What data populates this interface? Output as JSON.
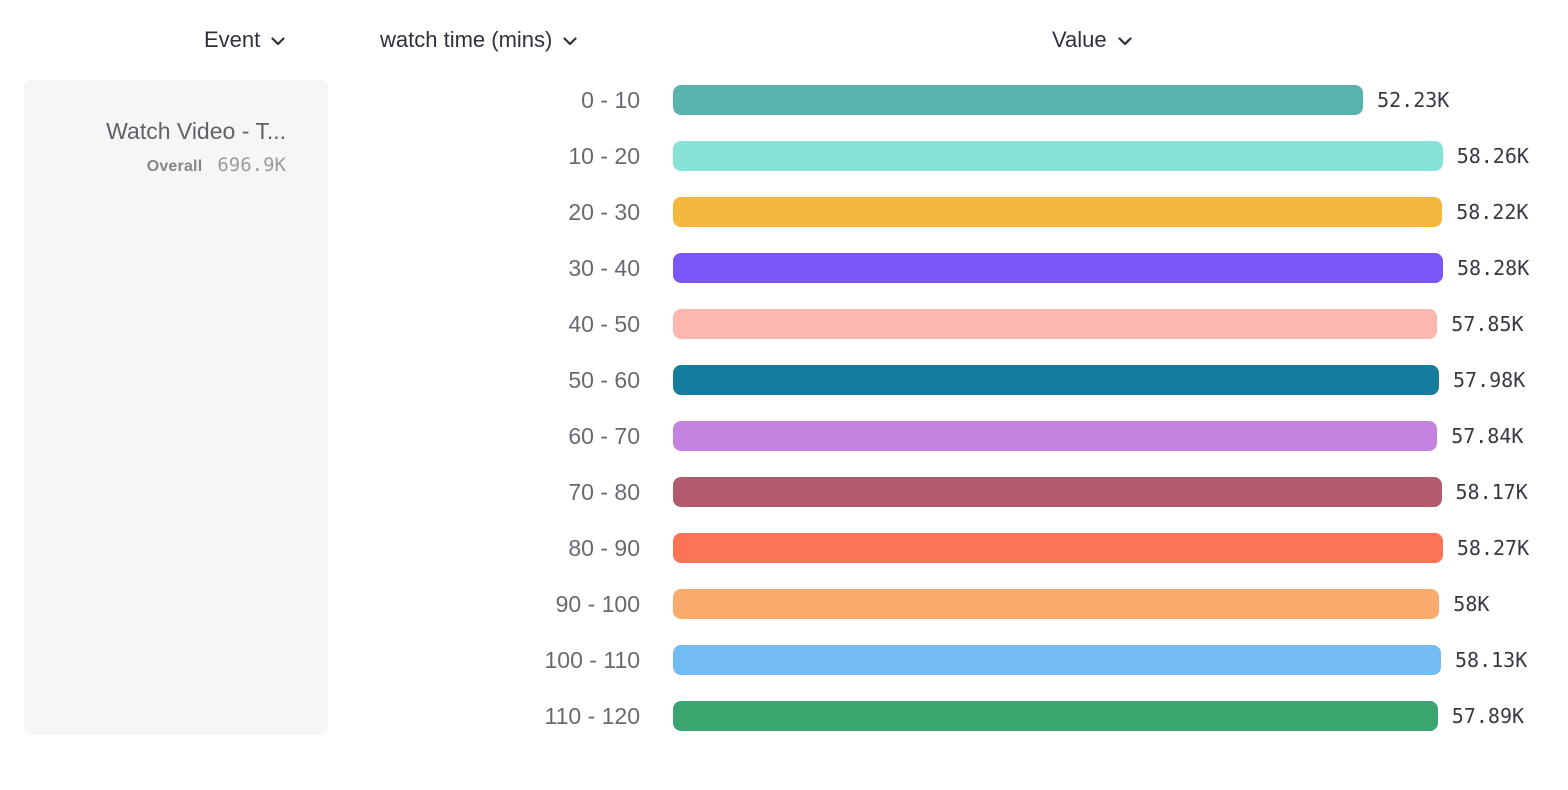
{
  "header": {
    "event": {
      "label": "Event"
    },
    "breakdown": {
      "label": "watch time (mins)"
    },
    "value": {
      "label": "Value"
    }
  },
  "event_card": {
    "title": "Watch Video - T...",
    "overall_label": "Overall",
    "overall_value": "696.9K"
  },
  "chart_data": {
    "type": "bar",
    "orientation": "horizontal",
    "title": "",
    "xlabel": "Value",
    "ylabel": "watch time (mins)",
    "grid": false,
    "legend": "none",
    "xlim_thousands": [
      0,
      58.28
    ],
    "categories": [
      "0 - 10",
      "10 - 20",
      "20 - 30",
      "30 - 40",
      "40 - 50",
      "50 - 60",
      "60 - 70",
      "70 - 80",
      "80 - 90",
      "90 - 100",
      "100 - 110",
      "110 - 120"
    ],
    "values_thousands": [
      52.23,
      58.26,
      58.22,
      58.28,
      57.85,
      57.98,
      57.84,
      58.17,
      58.27,
      58.0,
      58.13,
      57.89
    ],
    "value_labels": [
      "52.23K",
      "58.26K",
      "58.22K",
      "58.28K",
      "57.85K",
      "57.98K",
      "57.84K",
      "58.17K",
      "58.27K",
      "58K",
      "58.13K",
      "57.89K"
    ],
    "colors": [
      "#57b3ab",
      "#88e1d6",
      "#f4b73d",
      "#7b55f7",
      "#fdb7ae",
      "#177d9f",
      "#c383de",
      "#b25a6e",
      "#fd7355",
      "#fcab6e",
      "#73bcf3",
      "#3ba570"
    ]
  }
}
